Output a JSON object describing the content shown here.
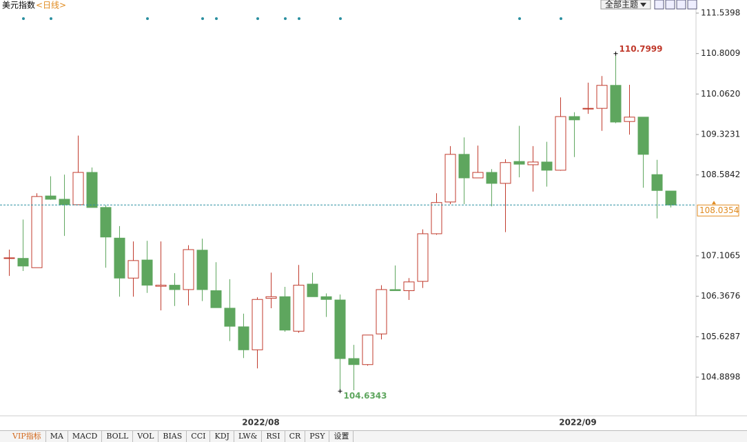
{
  "chart_data": {
    "type": "candlestick",
    "title": "美元指数",
    "subtitle": "<日线>",
    "categories": [
      null,
      null,
      null,
      null,
      null,
      null,
      null,
      null,
      null,
      null,
      null,
      null,
      null,
      null,
      null,
      null,
      null,
      null,
      "2022/08",
      null,
      null,
      null,
      null,
      null,
      null,
      null,
      null,
      null,
      null,
      null,
      null,
      null,
      null,
      null,
      null,
      null,
      null,
      null,
      null,
      null,
      null,
      "2022/09",
      null,
      null,
      null,
      null,
      null,
      null,
      null
    ],
    "open": [
      107.07,
      107.06,
      106.89,
      108.2,
      108.14,
      108.04,
      108.63,
      107.99,
      107.43,
      106.7,
      107.03,
      106.55,
      106.57,
      106.49,
      107.21,
      106.47,
      106.15,
      105.81,
      105.39,
      106.33,
      106.36,
      105.73,
      106.59,
      106.36,
      106.3,
      105.23,
      105.12,
      105.68,
      106.49,
      106.47,
      106.64,
      107.51,
      108.09,
      108.96,
      108.53,
      108.63,
      108.43,
      108.83,
      108.77,
      108.82,
      108.67,
      109.65,
      109.79,
      109.8,
      110.22,
      109.56,
      109.64,
      108.59,
      108.29
    ],
    "high": [
      107.22,
      107.77,
      108.25,
      108.56,
      108.59,
      109.3032,
      108.72,
      108.03,
      107.65,
      107.37,
      107.38,
      107.37,
      106.79,
      107.3,
      107.42,
      106.99,
      106.68,
      106.05,
      106.35,
      106.8,
      106.54,
      106.94,
      106.8,
      106.42,
      106.4,
      105.48,
      105.66,
      106.57,
      106.93,
      106.7,
      107.59,
      108.25,
      109.11,
      109.27,
      109.12,
      108.69,
      108.87,
      109.48,
      109.11,
      109.19,
      110.0,
      109.73,
      110.27,
      110.39,
      110.7999,
      110.23,
      109.64,
      108.86,
      108.29
    ],
    "low": [
      106.74,
      106.83,
      106.89,
      108.13,
      107.47,
      108.04,
      107.99,
      106.89,
      106.36,
      106.36,
      106.43,
      106.11,
      106.19,
      106.2,
      106.28,
      106.16,
      105.55,
      105.24,
      105.05,
      106.15,
      105.72,
      105.7,
      106.36,
      105.99,
      104.6343,
      104.65,
      105.1,
      105.58,
      106.47,
      106.3,
      106.52,
      107.49,
      108.05,
      108.05,
      108.53,
      108.01,
      107.54,
      108.54,
      108.28,
      108.37,
      108.66,
      108.91,
      109.7,
      109.39,
      109.53,
      109.32,
      108.35,
      107.79,
      107.99
    ],
    "close": [
      107.07,
      106.92,
      108.19,
      108.14,
      108.04,
      108.63,
      107.99,
      107.45,
      106.7,
      107.02,
      106.57,
      106.57,
      106.49,
      107.22,
      106.49,
      106.16,
      105.82,
      105.39,
      106.31,
      106.36,
      105.75,
      106.57,
      106.36,
      106.31,
      105.23,
      105.12,
      105.66,
      106.49,
      106.47,
      106.63,
      107.51,
      108.08,
      108.96,
      108.53,
      108.63,
      108.43,
      108.81,
      108.78,
      108.82,
      108.67,
      109.65,
      109.59,
      109.8,
      110.22,
      109.55,
      109.64,
      108.96,
      108.3,
      108.0354
    ],
    "up_color": "#c0392b",
    "down_color": "#5ea65e",
    "high_label_color": "#c0392b",
    "low_label_color": "#5ea65e",
    "last_price_color": "#e08a1e",
    "last_line_color": "#2a8fa0",
    "ylim": [
      104.2225,
      111.7791
    ],
    "yticks": [
      111.5398,
      110.8009,
      {
        "value": 110.062,
        "label": "110.0620"
      },
      109.3231,
      108.5842,
      107.1065,
      106.3676,
      105.6287,
      104.8898
    ],
    "grid": false
  },
  "toolbar": {
    "theme": "全部主题"
  },
  "tabs": [
    "VIP指标",
    "MA",
    "MACD",
    "BOLL",
    "VOL",
    "BIAS",
    "CCI",
    "KDJ",
    "LW&",
    "RSI",
    "CR",
    "PSY",
    "设置"
  ]
}
